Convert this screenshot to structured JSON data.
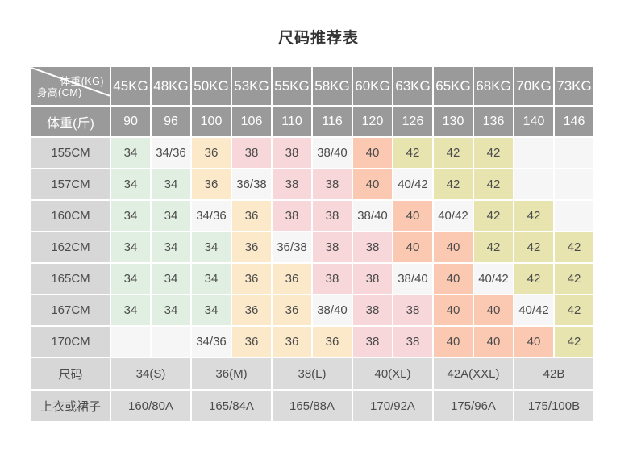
{
  "title": "尺码推荐表",
  "colors": {
    "header_bg": "#9a9a9a",
    "header_text": "#ffffff",
    "label_bg": "#d7d7d7",
    "bottom_bg": "#dbdbdb",
    "cell_text": "#4c4c4c",
    "title_text": "#333333",
    "divider_line": "#ffffff",
    "cell_green": "#e0efe1",
    "cell_white": "#f6f6f6",
    "cell_orange": "#fbe9ca",
    "cell_pink": "#f8d7da",
    "cell_salmon": "#fbc9b2",
    "cell_khaki": "#e7e4af"
  },
  "chart_data": {
    "type": "table",
    "title": "尺码推荐表",
    "corner_top_right": "体重(KG)",
    "corner_bottom_left": "身高(CM)",
    "weight_kg_columns": [
      "45KG",
      "48KG",
      "50KG",
      "53KG",
      "55KG",
      "58KG",
      "60KG",
      "63KG",
      "65KG",
      "68KG",
      "70KG",
      "73KG"
    ],
    "weight_jin_label": "体重(斤)",
    "weight_jin_values": [
      "90",
      "96",
      "100",
      "106",
      "110",
      "116",
      "120",
      "126",
      "130",
      "136",
      "140",
      "146"
    ],
    "height_rows": [
      {
        "label": "155CM",
        "cells": [
          {
            "v": "34",
            "c": "green"
          },
          {
            "v": "34/36",
            "c": "white"
          },
          {
            "v": "36",
            "c": "orange"
          },
          {
            "v": "38",
            "c": "pink"
          },
          {
            "v": "38",
            "c": "pink"
          },
          {
            "v": "38/40",
            "c": "white"
          },
          {
            "v": "40",
            "c": "salmon"
          },
          {
            "v": "42",
            "c": "khaki"
          },
          {
            "v": "42",
            "c": "khaki"
          },
          {
            "v": "42",
            "c": "khaki"
          },
          {
            "v": "",
            "c": "white"
          },
          {
            "v": "",
            "c": "white"
          }
        ]
      },
      {
        "label": "157CM",
        "cells": [
          {
            "v": "34",
            "c": "green"
          },
          {
            "v": "34",
            "c": "green"
          },
          {
            "v": "36",
            "c": "orange"
          },
          {
            "v": "36/38",
            "c": "white"
          },
          {
            "v": "38",
            "c": "pink"
          },
          {
            "v": "38",
            "c": "pink"
          },
          {
            "v": "40",
            "c": "salmon"
          },
          {
            "v": "40/42",
            "c": "white"
          },
          {
            "v": "42",
            "c": "khaki"
          },
          {
            "v": "42",
            "c": "khaki"
          },
          {
            "v": "",
            "c": "white"
          },
          {
            "v": "",
            "c": "white"
          }
        ]
      },
      {
        "label": "160CM",
        "cells": [
          {
            "v": "34",
            "c": "green"
          },
          {
            "v": "34",
            "c": "green"
          },
          {
            "v": "34/36",
            "c": "white"
          },
          {
            "v": "36",
            "c": "orange"
          },
          {
            "v": "38",
            "c": "pink"
          },
          {
            "v": "38",
            "c": "pink"
          },
          {
            "v": "38/40",
            "c": "white"
          },
          {
            "v": "40",
            "c": "salmon"
          },
          {
            "v": "40/42",
            "c": "white"
          },
          {
            "v": "42",
            "c": "khaki"
          },
          {
            "v": "42",
            "c": "khaki"
          },
          {
            "v": "",
            "c": "white"
          }
        ]
      },
      {
        "label": "162CM",
        "cells": [
          {
            "v": "34",
            "c": "green"
          },
          {
            "v": "34",
            "c": "green"
          },
          {
            "v": "34",
            "c": "green"
          },
          {
            "v": "36",
            "c": "orange"
          },
          {
            "v": "36/38",
            "c": "white"
          },
          {
            "v": "38",
            "c": "pink"
          },
          {
            "v": "38",
            "c": "pink"
          },
          {
            "v": "40",
            "c": "salmon"
          },
          {
            "v": "40",
            "c": "salmon"
          },
          {
            "v": "42",
            "c": "khaki"
          },
          {
            "v": "42",
            "c": "khaki"
          },
          {
            "v": "42",
            "c": "khaki"
          }
        ]
      },
      {
        "label": "165CM",
        "cells": [
          {
            "v": "34",
            "c": "green"
          },
          {
            "v": "34",
            "c": "green"
          },
          {
            "v": "34",
            "c": "green"
          },
          {
            "v": "36",
            "c": "orange"
          },
          {
            "v": "36",
            "c": "orange"
          },
          {
            "v": "38",
            "c": "pink"
          },
          {
            "v": "38",
            "c": "pink"
          },
          {
            "v": "38/40",
            "c": "white"
          },
          {
            "v": "40",
            "c": "salmon"
          },
          {
            "v": "40/42",
            "c": "white"
          },
          {
            "v": "42",
            "c": "khaki"
          },
          {
            "v": "42",
            "c": "khaki"
          }
        ]
      },
      {
        "label": "167CM",
        "cells": [
          {
            "v": "34",
            "c": "green"
          },
          {
            "v": "34",
            "c": "green"
          },
          {
            "v": "34",
            "c": "green"
          },
          {
            "v": "36",
            "c": "orange"
          },
          {
            "v": "36",
            "c": "orange"
          },
          {
            "v": "38/40",
            "c": "white"
          },
          {
            "v": "38",
            "c": "pink"
          },
          {
            "v": "38",
            "c": "pink"
          },
          {
            "v": "40",
            "c": "salmon"
          },
          {
            "v": "40",
            "c": "salmon"
          },
          {
            "v": "40/42",
            "c": "white"
          },
          {
            "v": "42",
            "c": "khaki"
          }
        ]
      },
      {
        "label": "170CM",
        "cells": [
          {
            "v": "",
            "c": "white"
          },
          {
            "v": "",
            "c": "white"
          },
          {
            "v": "34/36",
            "c": "white"
          },
          {
            "v": "36",
            "c": "orange"
          },
          {
            "v": "36",
            "c": "orange"
          },
          {
            "v": "36",
            "c": "orange"
          },
          {
            "v": "38",
            "c": "pink"
          },
          {
            "v": "38",
            "c": "pink"
          },
          {
            "v": "40",
            "c": "salmon"
          },
          {
            "v": "40",
            "c": "salmon"
          },
          {
            "v": "40",
            "c": "salmon"
          },
          {
            "v": "42",
            "c": "khaki"
          }
        ]
      }
    ],
    "size_row": {
      "label": "尺码",
      "values": [
        "34(S)",
        "36(M)",
        "38(L)",
        "40(XL)",
        "42A(XXL)",
        "42B"
      ]
    },
    "garment_row": {
      "label": "上衣或裙子",
      "values": [
        "160/80A",
        "165/84A",
        "165/88A",
        "170/92A",
        "175/96A",
        "175/100B"
      ]
    }
  }
}
